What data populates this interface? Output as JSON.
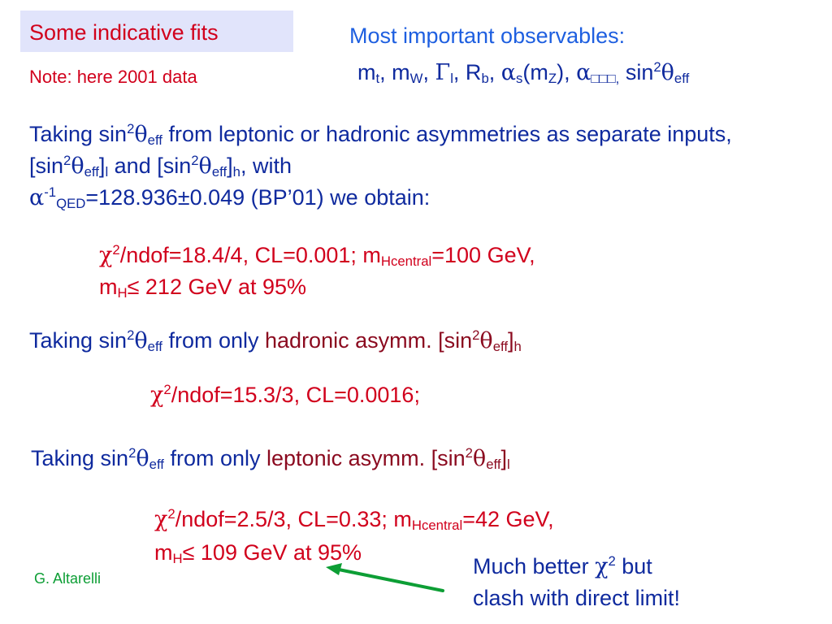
{
  "title": "Some indicative fits",
  "note": "Note: here 2001 data",
  "observables": {
    "heading": "Most important observables:",
    "m": "m",
    "sub_t": "t",
    "sep1": ", m",
    "sub_W": "W",
    "sep2": ", ",
    "Gamma": "Γ",
    "sub_l": "l",
    "sep3": ", R",
    "sub_b": "b",
    "sep4": ", ",
    "alpha": "α",
    "sub_s": "s",
    "mz_open": "(m",
    "sub_Z": "Z",
    "mz_close": "), ",
    "alpha2": "α",
    "sub_garbled": "□□□,",
    "sin": " sin",
    "sup_2": "2",
    "theta": "θ",
    "sub_eff": "eff"
  },
  "para1": {
    "a": "Taking sin",
    "sup": "2",
    "theta": "θ",
    "eff": "eff",
    "b": " from leptonic or hadronic asymmetries as separate inputs, [sin",
    "sup2": "2",
    "theta2": "θ",
    "eff2": "eff",
    "c": "]",
    "l": "l",
    "d": " and [sin",
    "sup3": "2",
    "theta3": "θ",
    "eff3": "eff",
    "e": "]",
    "h": "h",
    "f": ", with",
    "alpha": "α",
    "minus1": "-1",
    "qed": "QED",
    "g": "=128.936±0.049 (BP’01) we obtain:"
  },
  "result1": {
    "chi": "χ",
    "sup": "2",
    "a": "/ndof=18.4/4, CL=0.001; m",
    "sub_hc": "Hcentral",
    "b": "=100 GeV,",
    "m": "m",
    "sub_h": "H",
    "c": "≤ 212 GeV at 95%"
  },
  "para2": {
    "a": "Taking sin",
    "sup": "2",
    "theta": "θ",
    "eff": "eff",
    "b": " from only ",
    "c": "hadronic asymm. [sin",
    "sup2": "2",
    "theta2": "θ",
    "eff2": "eff",
    "d": "]",
    "h": "h"
  },
  "result2": {
    "chi": "χ",
    "sup": "2",
    "a": "/ndof=15.3/3, CL=0.0016;"
  },
  "para3": {
    "a": "Taking sin",
    "sup": "2",
    "theta": "θ",
    "eff": "eff",
    "b": " from only ",
    "c": "leptonic asymm. [sin",
    "sup2": "2",
    "theta2": "θ",
    "eff2": "eff",
    "d": "]",
    "l": "l"
  },
  "result3": {
    "chi": "χ",
    "sup": "2",
    "a": "/ndof=2.5/3, CL=0.33; m",
    "sub_hc": "Hcentral",
    "b": "=42 GeV,",
    "m": "m",
    "sub_h": "H",
    "c": "≤ 109 GeV at 95%"
  },
  "author": "G. Altarelli",
  "comment": {
    "a": "Much better ",
    "chi": "χ",
    "sup": "2",
    "b": " but",
    "c": "clash with direct limit!"
  },
  "colors": {
    "title_box": "#e1e4fb",
    "body_text": "#0f2a9e",
    "heading_text": "#1e5fe0",
    "result_text": "#d1001c",
    "emphasis_text": "#8b0a1f",
    "arrow": "#0d9e35"
  }
}
